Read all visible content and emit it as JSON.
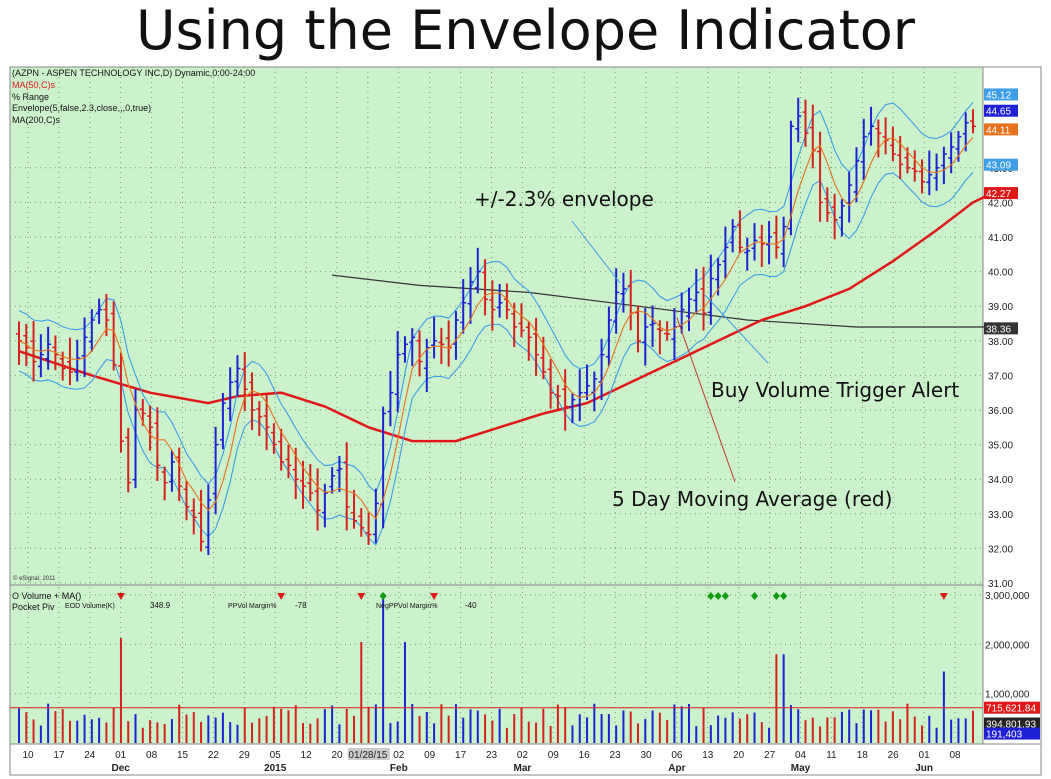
{
  "slide": {
    "title": "Using the Envelope Indicator"
  },
  "header": {
    "symbol_line": "(AZPN - ASPEN TECHNOLOGY INC,D) Dynamic,0:00-24:00",
    "ma50": "MA(50,C)s",
    "range": "% Range",
    "envelope": "Envelope(5,false,2.3,close,,,0,true)",
    "ma200": "MA(200,C)s",
    "copyright": "© eSignal, 2011"
  },
  "volume_header": {
    "line1": "O Volume + MA()",
    "line2": "Pocket Piv",
    "eod_label": "EOD Volume(K)",
    "eod_value": "348.9",
    "ppvol_label": "PPVol Margin%",
    "ppvol_value": "-78",
    "neg_label": "NegPPVol Margin%",
    "neg_value": "-40"
  },
  "annotations": {
    "envelope": "+/-2.3% envelope",
    "buy_volume": "Buy Volume Trigger Alert",
    "ma5": "5 Day Moving Average (red)"
  },
  "colors": {
    "background": "#ccf2cc",
    "up_bar": "#1f1fd6",
    "down_bar": "#d81e1e",
    "envelope": "#3d9ee8",
    "ma5": "#e8711b",
    "ma50": "#e01818",
    "ma200": "#333333"
  },
  "chart_data": [
    {
      "type": "candlestick",
      "title": "(AZPN - ASPEN TECHNOLOGY INC,D) Dynamic,0:00-24:00",
      "ylim": [
        31.0,
        45.3
      ],
      "y_ticks": [
        "31.00",
        "32.00",
        "33.00",
        "34.00",
        "35.00",
        "36.00",
        "37.00",
        "38.00",
        "39.00",
        "40.00",
        "41.00",
        "42.00",
        "43.00"
      ],
      "x_ticks": [
        "10",
        "17",
        "24",
        "01",
        "08",
        "15",
        "22",
        "29",
        "05",
        "12",
        "20",
        "01/28/15",
        "02",
        "09",
        "17",
        "23",
        "02",
        "09",
        "16",
        "23",
        "30",
        "06",
        "13",
        "20",
        "27",
        "04",
        "11",
        "18",
        "26",
        "01",
        "08"
      ],
      "month_labels": [
        "Dec",
        "2015",
        "Feb",
        "Mar",
        "Apr",
        "May",
        "Jun"
      ],
      "grid": true,
      "legend": "top-left",
      "price_labels": [
        {
          "text": "45.12",
          "color": "#3d9ee8",
          "value": 45.12
        },
        {
          "text": "44.65",
          "color": "#1f1fd6",
          "value": 44.65
        },
        {
          "text": "44.11",
          "color": "#e8711b",
          "value": 44.11
        },
        {
          "text": "43.09",
          "color": "#3d9ee8",
          "value": 43.09
        },
        {
          "text": "42.27",
          "color": "#e01818",
          "value": 42.27
        },
        {
          "text": "38.36",
          "color": "#333333",
          "value": 38.36
        }
      ],
      "closes": [
        38.0,
        37.8,
        37.4,
        37.6,
        37.9,
        37.6,
        37.2,
        37.1,
        37.5,
        38.1,
        38.6,
        38.9,
        38.6,
        37.3,
        35.1,
        33.9,
        36.0,
        35.9,
        35.5,
        34.4,
        33.9,
        34.5,
        33.8,
        33.2,
        32.9,
        32.2,
        33.4,
        35.0,
        36.2,
        36.8,
        37.2,
        36.6,
        36.0,
        35.8,
        35.5,
        35.0,
        34.5,
        34.4,
        34.0,
        33.8,
        33.6,
        33.1,
        33.6,
        34.1,
        34.3,
        33.2,
        32.8,
        32.6,
        32.4,
        33.3,
        35.9,
        36.5,
        37.6,
        37.9,
        38.1,
        37.4,
        37.8,
        38.0,
        37.9,
        37.8,
        38.6,
        39.1,
        39.7,
        40.0,
        39.2,
        38.9,
        39.1,
        38.9,
        38.4,
        38.3,
        38.1,
        37.6,
        37.1,
        36.5,
        36.4,
        36.1,
        36.3,
        36.5,
        36.7,
        36.9,
        37.6,
        38.6,
        39.4,
        39.5,
        38.8,
        38.0,
        38.4,
        38.5,
        38.3,
        38.2,
        38.4,
        38.9,
        39.2,
        39.4,
        38.8,
        39.8,
        40.2,
        40.7,
        41.3,
        40.7,
        40.6,
        40.9,
        40.8,
        41.0,
        40.7,
        41.3,
        44.2,
        44.5,
        44.0,
        43.5,
        42.0,
        41.7,
        41.5,
        41.9,
        42.5,
        43.2,
        43.9,
        44.2,
        44.0,
        43.8,
        43.4,
        43.1,
        43.0,
        42.9,
        42.6,
        42.8,
        43.0,
        43.4,
        43.6,
        43.9,
        44.3,
        44.2
      ],
      "ma50": [
        [
          0,
          37.7
        ],
        [
          10,
          37.0
        ],
        [
          18,
          36.5
        ],
        [
          26,
          36.2
        ],
        [
          30,
          36.4
        ],
        [
          36,
          36.5
        ],
        [
          42,
          36.1
        ],
        [
          48,
          35.5
        ],
        [
          54,
          35.1
        ],
        [
          60,
          35.1
        ],
        [
          66,
          35.5
        ],
        [
          72,
          35.9
        ],
        [
          78,
          36.2
        ],
        [
          84,
          36.8
        ],
        [
          90,
          37.4
        ],
        [
          96,
          38.0
        ],
        [
          102,
          38.6
        ],
        [
          108,
          39.0
        ],
        [
          114,
          39.5
        ],
        [
          120,
          40.3
        ],
        [
          126,
          41.2
        ],
        [
          131,
          42.0
        ],
        [
          134,
          42.3
        ]
      ],
      "ma200": [
        [
          43,
          39.9
        ],
        [
          55,
          39.6
        ],
        [
          70,
          39.4
        ],
        [
          85,
          39.0
        ],
        [
          100,
          38.6
        ],
        [
          115,
          38.4
        ],
        [
          134,
          38.4
        ]
      ],
      "volume": {
        "ylim": [
          0,
          3000000
        ],
        "y_ticks": [
          "1,000,000",
          "2,000,000",
          "3,000,000"
        ],
        "labels": [
          {
            "text": "715,621.84",
            "color": "#e01818",
            "value": 715621.84
          },
          {
            "text": "394,801.93",
            "color": "#222222",
            "value": 394801.93
          },
          {
            "text": "191,403",
            "color": "#1f1fd6",
            "value": 191403
          }
        ],
        "ma_level": 715621.84,
        "marker_down_at": [
          14,
          36,
          47,
          57,
          127
        ],
        "marker_diamond_at": [
          50,
          95,
          96,
          97,
          101,
          104,
          105
        ]
      }
    }
  ]
}
